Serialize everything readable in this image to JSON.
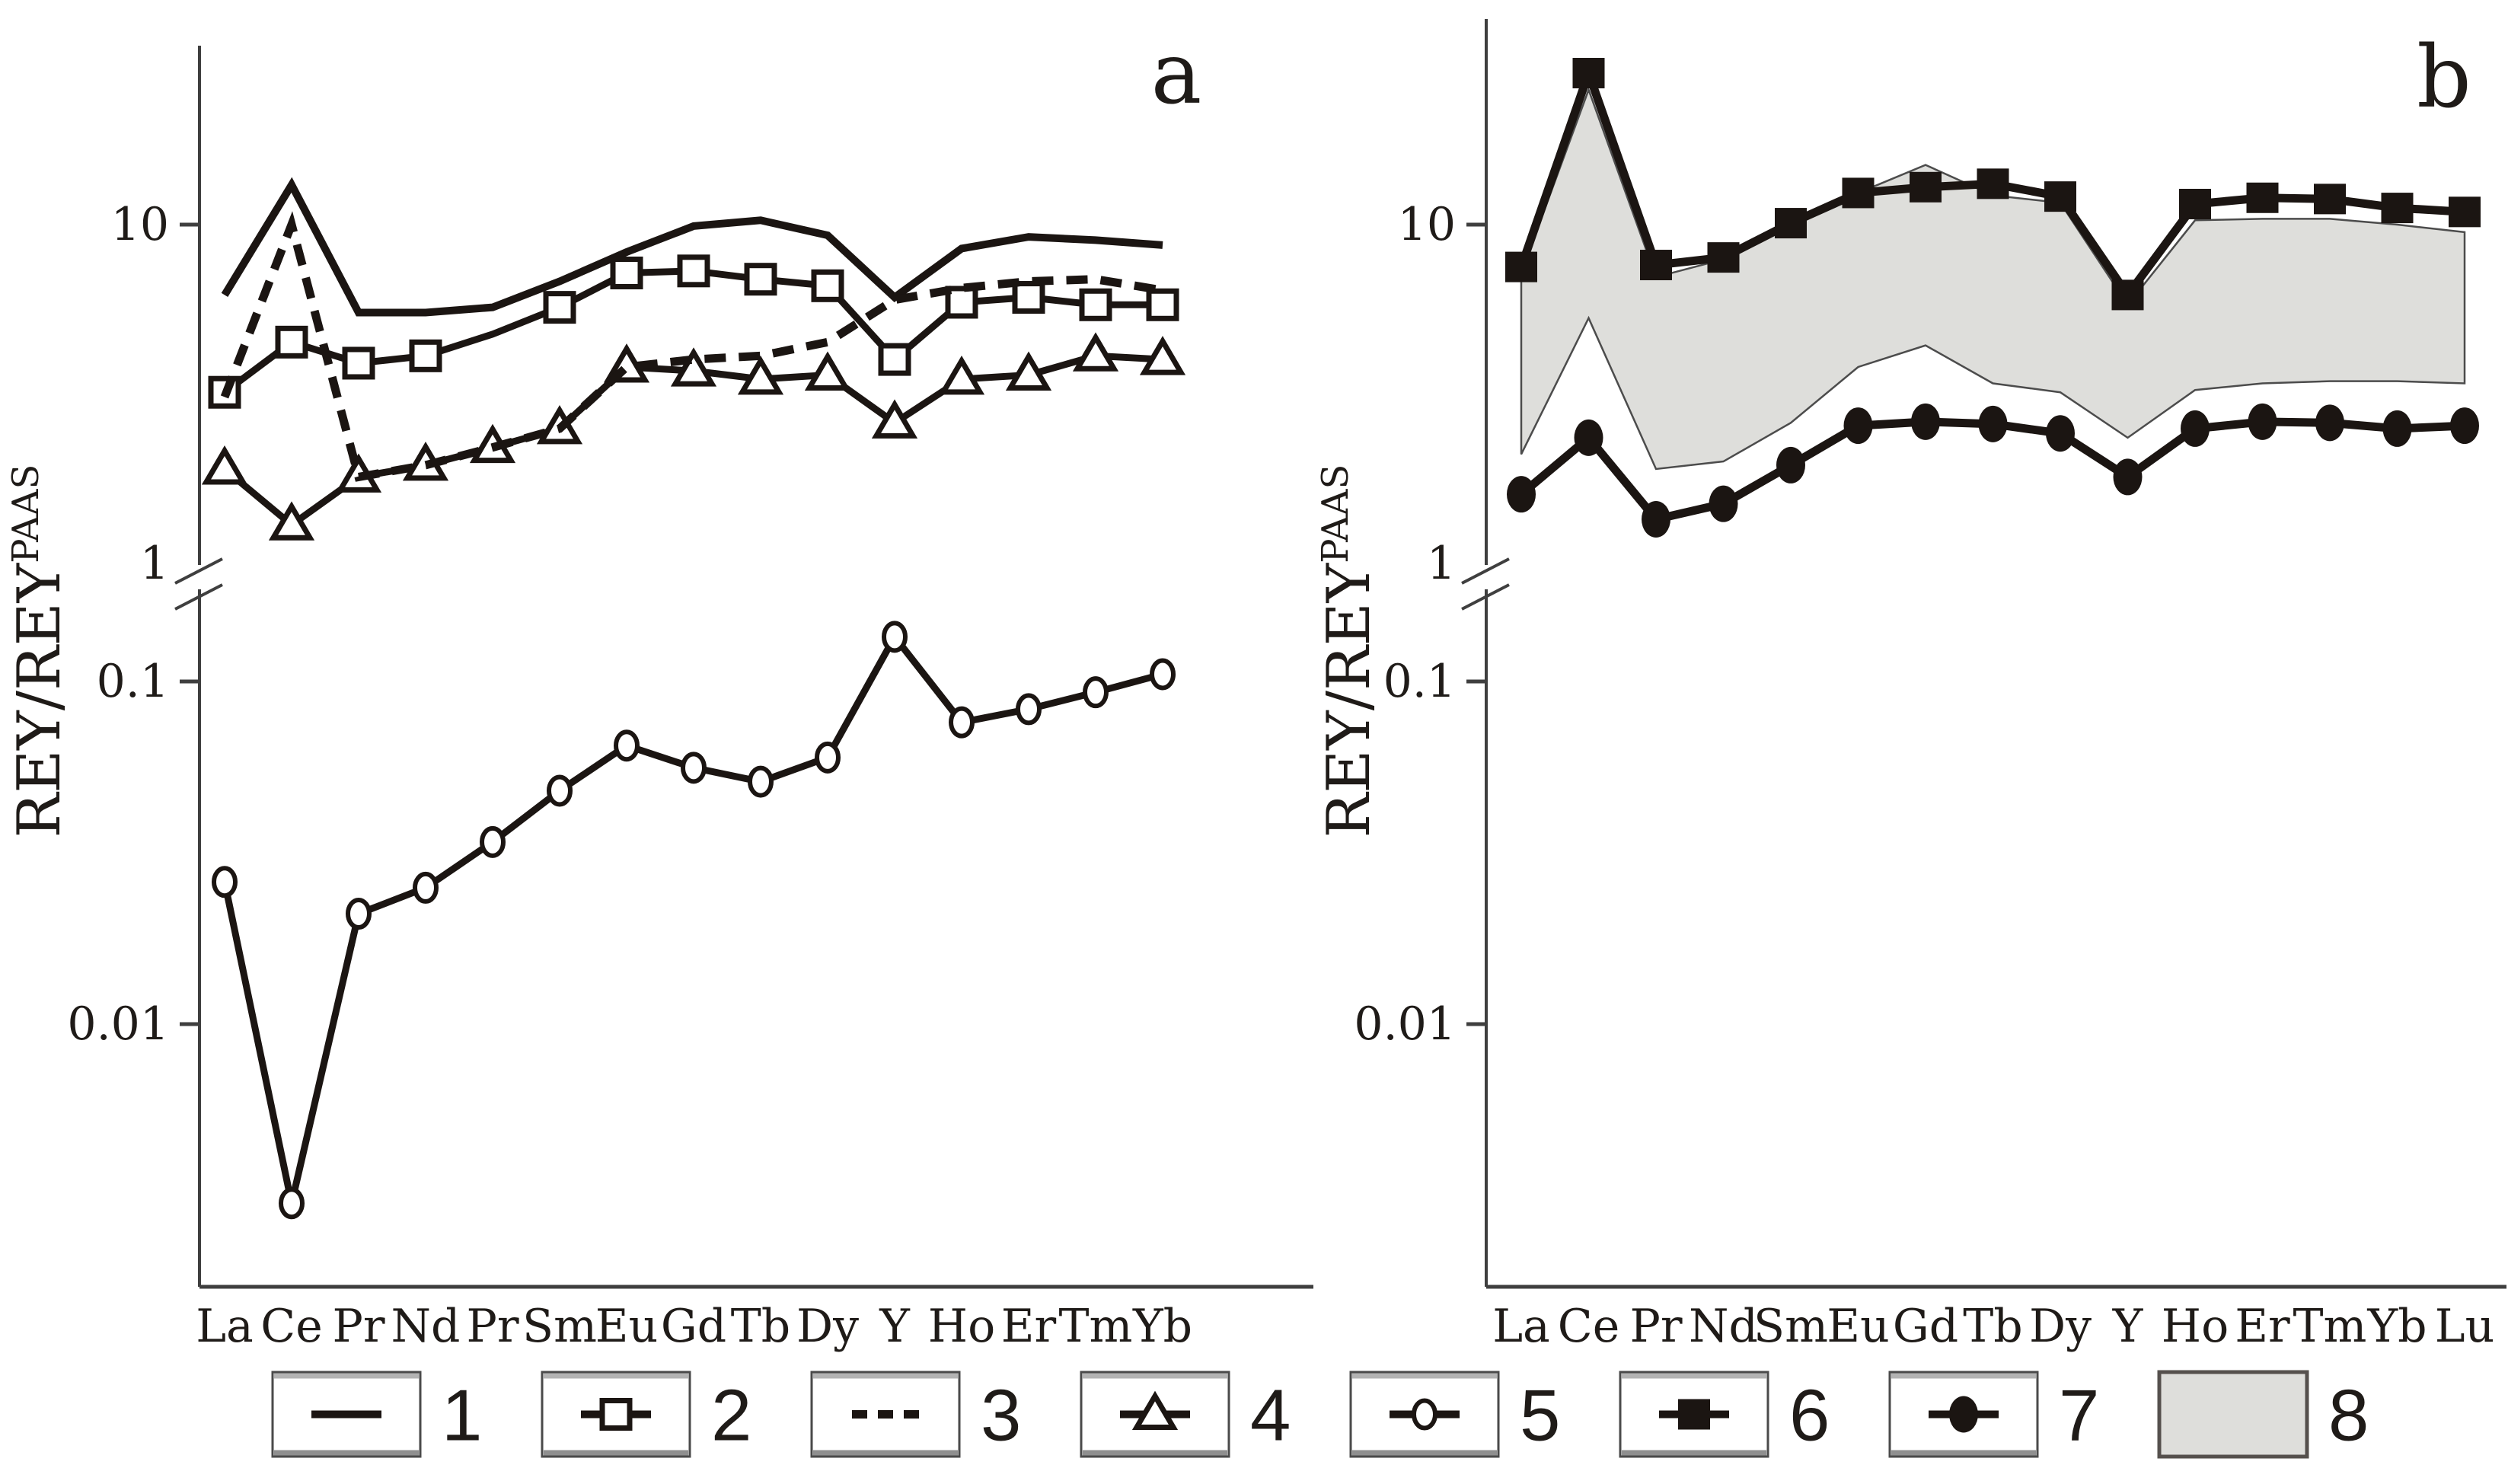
{
  "figure": {
    "panel_a_label": "a",
    "panel_b_label": "b",
    "y_axis_title": "REY/REY",
    "y_axis_title_sup": "PAAS",
    "colors": {
      "line": "#1b1512",
      "band_fill": "#dededb",
      "band_edge": "#4c4c4c",
      "axis": "#3f3f3f",
      "text": "#1f1b18",
      "background": "#ffffff"
    }
  },
  "chart_data": [
    {
      "type": "line",
      "panel": "a",
      "title": "",
      "xlabel": "",
      "ylabel": "REY/REY^PAAS",
      "y_scale": "log, broken axis (break between ~0.2 and 1)",
      "grid": false,
      "y_ticks": [
        {
          "label": "10",
          "value": 10
        },
        {
          "label": "1",
          "value": 1
        },
        {
          "label": "0.1",
          "value": 0.1
        },
        {
          "label": "0.01",
          "value": 0.01
        }
      ],
      "categories": [
        "La",
        "Ce",
        "Pr",
        "Nd",
        "Pr",
        "Sm",
        "Eu",
        "Gd",
        "Tb",
        "Dy",
        "Y",
        "Ho",
        "Er",
        "Tm",
        "Yb"
      ],
      "series": [
        {
          "name": "1",
          "line": "solid",
          "marker": "none",
          "values": [
            6.2,
            13.1,
            5.5,
            5.5,
            5.7,
            6.8,
            8.3,
            9.9,
            10.3,
            9.3,
            6.1,
            8.5,
            9.2,
            9.0,
            8.7
          ]
        },
        {
          "name": "2",
          "line": "solid",
          "marker": "open-square",
          "no_marker_at": [
            4
          ],
          "values": [
            3.2,
            4.5,
            3.9,
            4.1,
            4.75,
            5.7,
            7.2,
            7.3,
            6.9,
            6.6,
            4.0,
            5.9,
            6.1,
            5.8,
            5.8
          ]
        },
        {
          "name": "3",
          "line": "dashed",
          "marker": "none",
          "values": [
            3.1,
            10.0,
            1.8,
            1.95,
            2.2,
            2.5,
            3.8,
            4.0,
            4.1,
            4.5,
            6.0,
            6.5,
            6.8,
            6.9,
            6.4
          ]
        },
        {
          "name": "4",
          "line": "solid",
          "marker": "open-triangle",
          "values": [
            1.9,
            1.3,
            1.8,
            1.95,
            2.2,
            2.5,
            3.8,
            3.7,
            3.5,
            3.6,
            2.6,
            3.5,
            3.6,
            4.1,
            4.0
          ]
        },
        {
          "name": "5",
          "line": "solid",
          "marker": "open-circle",
          "values": [
            0.026,
            0.003,
            0.021,
            0.025,
            0.034,
            0.048,
            0.065,
            0.056,
            0.051,
            0.06,
            0.135,
            0.076,
            0.083,
            0.093,
            0.105
          ]
        }
      ]
    },
    {
      "type": "line",
      "panel": "b",
      "title": "",
      "xlabel": "",
      "ylabel": "REY/REY^PAAS",
      "y_scale": "log, broken axis (break between ~0.2 and 1)",
      "grid": false,
      "y_ticks": [
        {
          "label": "10",
          "value": 10
        },
        {
          "label": "1",
          "value": 1
        },
        {
          "label": "0.1",
          "value": 0.1
        },
        {
          "label": "0.01",
          "value": 0.01
        }
      ],
      "categories": [
        "La",
        "Ce",
        "Pr",
        "Nd",
        "Sm",
        "Eu",
        "Gd",
        "Tb",
        "Dy",
        "Y",
        "Ho",
        "Er",
        "Tm",
        "Yb",
        "Lu"
      ],
      "series": [
        {
          "name": "6",
          "line": "solid",
          "marker": "filled-square",
          "values": [
            7.5,
            28,
            7.6,
            8.0,
            10.1,
            12.4,
            12.9,
            13.2,
            12.1,
            6.2,
            11.5,
            12.0,
            11.9,
            11.2,
            10.9
          ]
        },
        {
          "name": "7",
          "line": "solid",
          "marker": "filled-circle",
          "values": [
            1.6,
            2.35,
            1.35,
            1.5,
            1.95,
            2.55,
            2.62,
            2.58,
            2.42,
            1.8,
            2.5,
            2.62,
            2.6,
            2.5,
            2.55
          ]
        }
      ],
      "band": {
        "name": "8",
        "upper": [
          7.2,
          25,
          7.0,
          7.9,
          9.9,
          12.4,
          15.0,
          12.2,
          11.6,
          5.8,
          10.3,
          10.4,
          10.4,
          10.0,
          9.5
        ],
        "lower": [
          2.1,
          5.3,
          1.9,
          2.0,
          2.6,
          3.8,
          4.4,
          3.4,
          3.2,
          2.35,
          3.25,
          3.4,
          3.45,
          3.45,
          3.4
        ]
      }
    }
  ],
  "legend": {
    "items": [
      {
        "label": "1",
        "symbol": "solid-line"
      },
      {
        "label": "2",
        "symbol": "open-square"
      },
      {
        "label": "3",
        "symbol": "dashed-line"
      },
      {
        "label": "4",
        "symbol": "open-triangle"
      },
      {
        "label": "5",
        "symbol": "open-circle"
      },
      {
        "label": "6",
        "symbol": "filled-square"
      },
      {
        "label": "7",
        "symbol": "filled-circle"
      },
      {
        "label": "8",
        "symbol": "shaded-band"
      }
    ]
  }
}
